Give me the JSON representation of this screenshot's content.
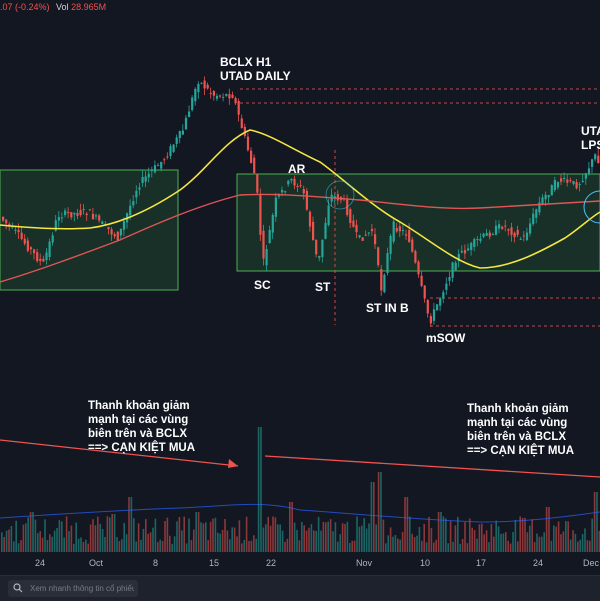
{
  "header": {
    "price_change": ".07 (-0.24%)",
    "volume_label": "Vol",
    "volume_value": "28.965M"
  },
  "labels": {
    "bclx": "BCLX H1",
    "utad": "UTAD DAILY",
    "ar": "AR",
    "sc": "SC",
    "st": "ST",
    "st_in_b": "ST IN B",
    "msow": "mSOW",
    "uta_partial": "UTA",
    "lps_partial": "LPS"
  },
  "annotations": {
    "left": [
      "Thanh khoản giảm",
      "mạnh tại các vùng",
      "biên trên và BCLX",
      "==> CẠN KIỆT MUA"
    ],
    "right": [
      "Thanh khoản giảm",
      "mạnh tại các vùng",
      "biên trên và BCLX",
      "==> CẠN KIỆT MUA"
    ]
  },
  "x_axis": [
    "24",
    "Oct",
    "8",
    "15",
    "22",
    "Nov",
    "10",
    "17",
    "24",
    "Dec"
  ],
  "search": {
    "placeholder": "Xem nhanh thông tin cổ phiếu"
  },
  "colors": {
    "background": "#131722",
    "up_candle": "#26a69a",
    "down_candle": "#ef5350",
    "ma_yellow": "#f5e642",
    "ma_red": "#e05555",
    "zone_border": "#4caf50",
    "zone_fill": "#1b3a2a"
  },
  "icons": {
    "search": "search-icon",
    "logo": "tradingview-logo-icon"
  }
}
